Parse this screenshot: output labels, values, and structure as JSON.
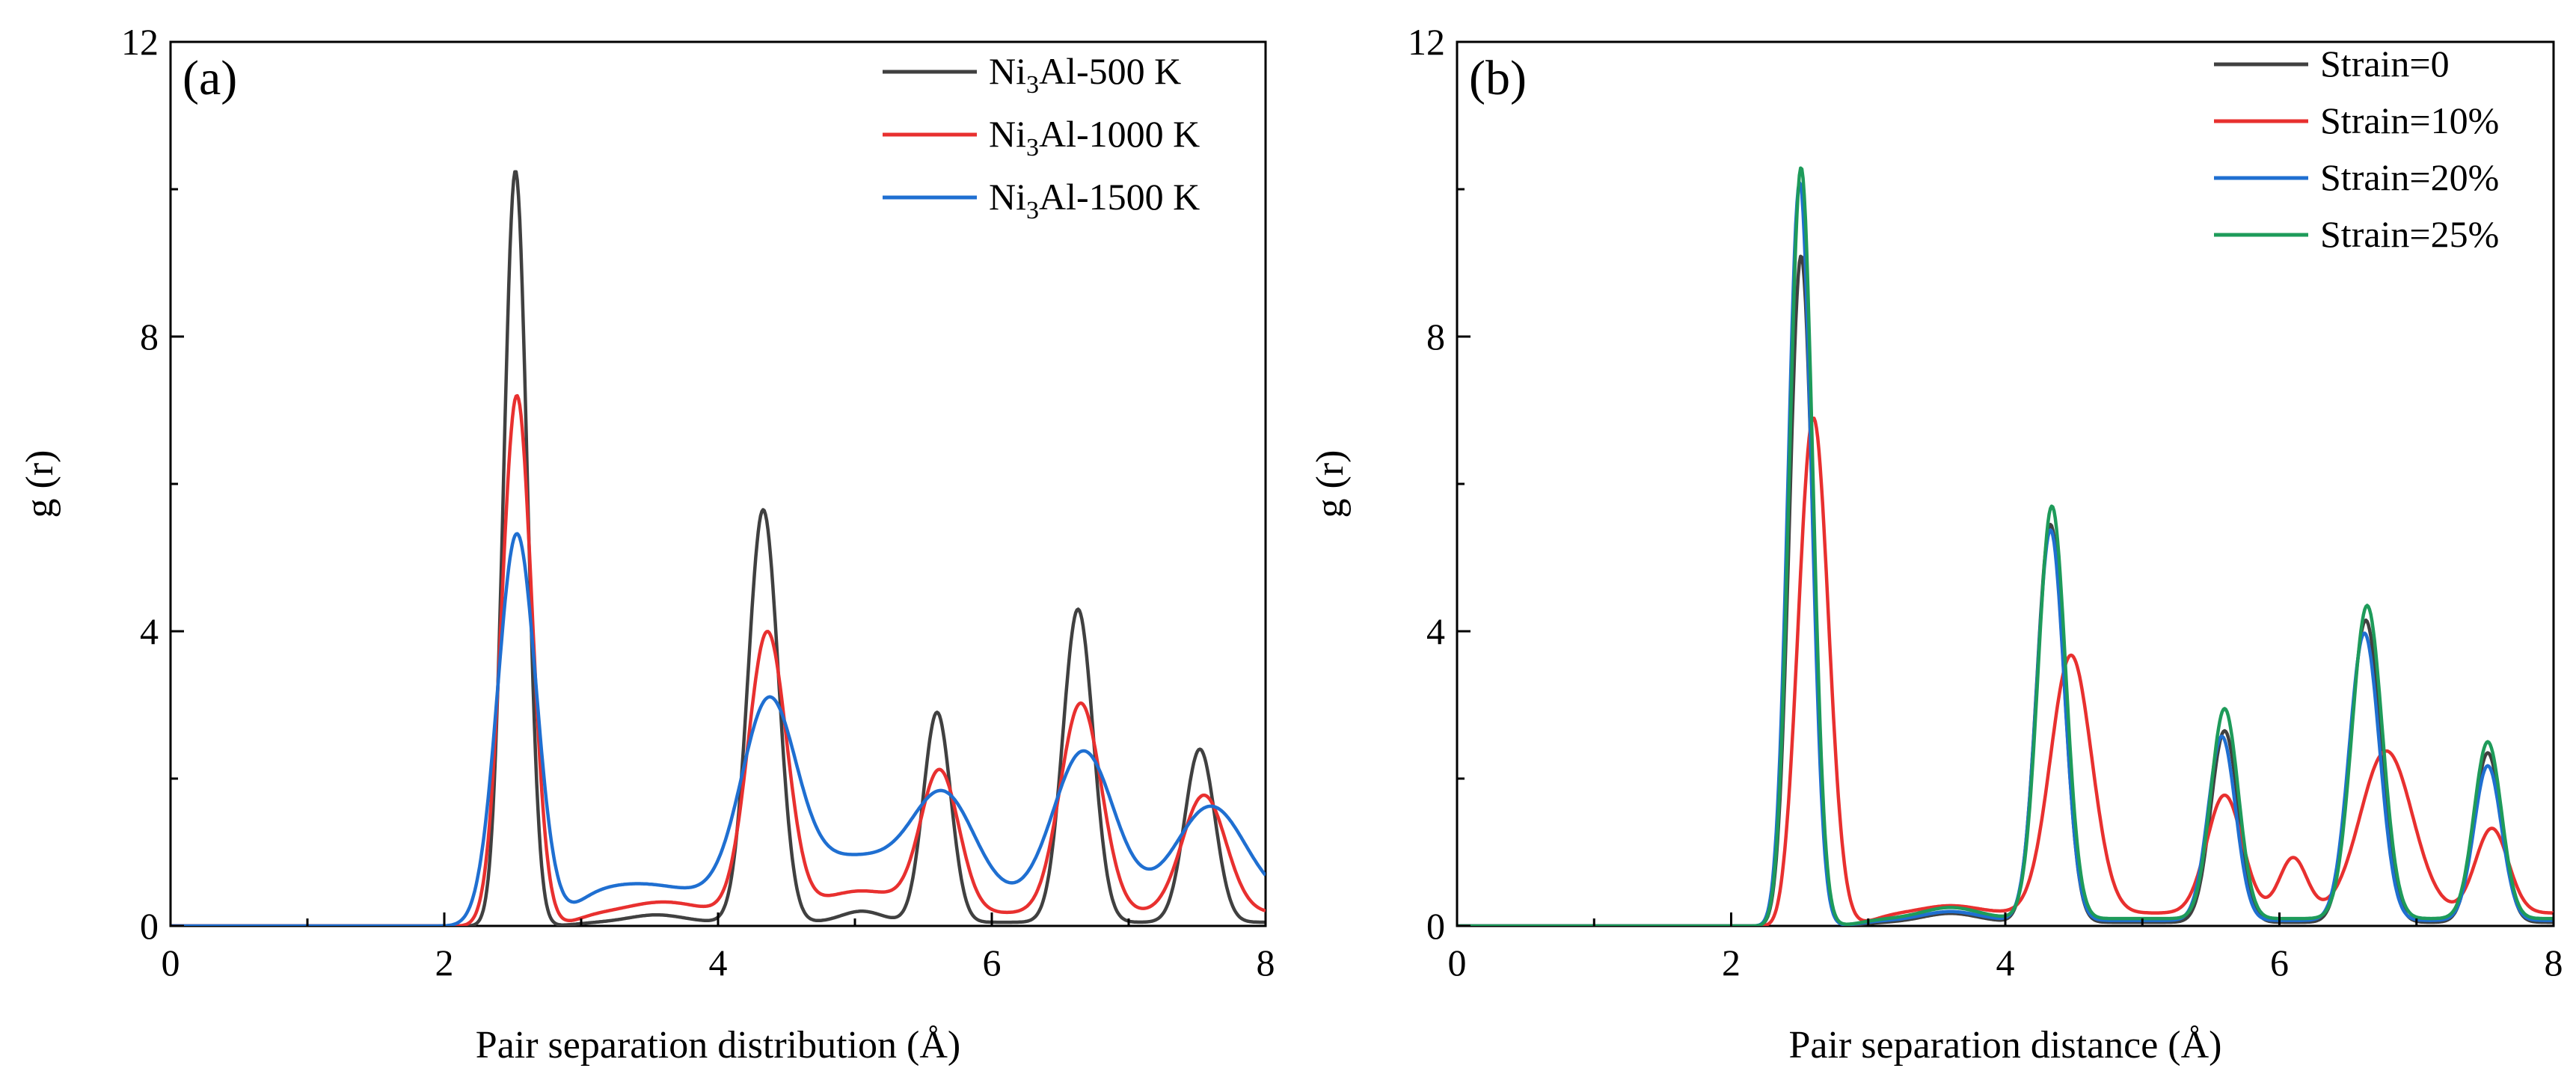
{
  "chart_data": [
    {
      "type": "line",
      "panel_label": "(a)",
      "xlabel": "Pair separation distribution (Å)",
      "ylabel": "g (r)",
      "xlim": [
        0,
        8
      ],
      "ylim": [
        0,
        12
      ],
      "xticks": [
        "0",
        "2",
        "4",
        "6",
        "8"
      ],
      "yticks": [
        "0",
        "4",
        "8",
        "12"
      ],
      "legend_position": "top-right",
      "series": [
        {
          "name": "Ni3Al-500 K",
          "label_parts": [
            "Ni",
            "3",
            "Al-500 K"
          ],
          "color": "#404040",
          "baseline_start": 2.15,
          "peaks": [
            {
              "center": 2.52,
              "height": 10.25,
              "width": 0.085
            },
            {
              "center": 3.55,
              "height": 0.1,
              "width": 0.2
            },
            {
              "center": 4.33,
              "height": 5.6,
              "width": 0.11
            },
            {
              "center": 5.05,
              "height": 0.15,
              "width": 0.15
            },
            {
              "center": 5.6,
              "height": 2.85,
              "width": 0.1
            },
            {
              "center": 6.63,
              "height": 4.25,
              "width": 0.11
            },
            {
              "center": 7.52,
              "height": 2.35,
              "width": 0.11
            }
          ],
          "floor": 0.1
        },
        {
          "name": "Ni3Al-1000 K",
          "label_parts": [
            "Ni",
            "3",
            "Al-1000 K"
          ],
          "color": "#e8302f",
          "baseline_start": 2.1,
          "peaks": [
            {
              "center": 2.53,
              "height": 7.2,
              "width": 0.11
            },
            {
              "center": 3.6,
              "height": 0.15,
              "width": 0.25
            },
            {
              "center": 4.36,
              "height": 3.8,
              "width": 0.14
            },
            {
              "center": 5.05,
              "height": 0.3,
              "width": 0.3
            },
            {
              "center": 5.62,
              "height": 1.9,
              "width": 0.14
            },
            {
              "center": 6.65,
              "height": 2.85,
              "width": 0.15
            },
            {
              "center": 7.55,
              "height": 1.6,
              "width": 0.16
            }
          ],
          "floor": 0.35
        },
        {
          "name": "Ni3Al-1500 K",
          "label_parts": [
            "Ni",
            "3",
            "Al-1500 K"
          ],
          "color": "#1f6fd1",
          "baseline_start": 2.0,
          "peaks": [
            {
              "center": 2.53,
              "height": 5.3,
              "width": 0.14
            },
            {
              "center": 3.4,
              "height": 0.25,
              "width": 0.4
            },
            {
              "center": 4.37,
              "height": 2.65,
              "width": 0.2
            },
            {
              "center": 5.0,
              "height": 0.6,
              "width": 0.35
            },
            {
              "center": 5.65,
              "height": 1.4,
              "width": 0.23
            },
            {
              "center": 6.67,
              "height": 2.05,
              "width": 0.22
            },
            {
              "center": 7.6,
              "height": 1.3,
              "width": 0.25
            }
          ],
          "floor": 0.65
        }
      ]
    },
    {
      "type": "line",
      "panel_label": "(b)",
      "xlabel": "Pair separation distance (Å)",
      "ylabel": "g (r)",
      "xlim": [
        0,
        8
      ],
      "ylim": [
        0,
        12
      ],
      "xticks": [
        "0",
        "2",
        "4",
        "6",
        "8"
      ],
      "yticks": [
        "0",
        "4",
        "8",
        "12"
      ],
      "legend_position": "top-right",
      "series": [
        {
          "name": "Strain=0",
          "label_parts": [
            "Strain=0"
          ],
          "color": "#404040",
          "baseline_start": 2.2,
          "peaks": [
            {
              "center": 2.51,
              "height": 9.1,
              "width": 0.085
            },
            {
              "center": 3.6,
              "height": 0.12,
              "width": 0.2
            },
            {
              "center": 4.33,
              "height": 5.4,
              "width": 0.1
            },
            {
              "center": 5.6,
              "height": 2.6,
              "width": 0.1
            },
            {
              "center": 6.63,
              "height": 4.1,
              "width": 0.11
            },
            {
              "center": 7.52,
              "height": 2.3,
              "width": 0.1
            }
          ],
          "floor": 0.1
        },
        {
          "name": "Strain=10%",
          "label_parts": [
            "Strain=10%"
          ],
          "color": "#e8302f",
          "baseline_start": 2.3,
          "peaks": [
            {
              "center": 2.6,
              "height": 6.9,
              "width": 0.11
            },
            {
              "center": 3.6,
              "height": 0.1,
              "width": 0.2
            },
            {
              "center": 4.48,
              "height": 3.5,
              "width": 0.15
            },
            {
              "center": 5.6,
              "height": 1.6,
              "width": 0.13
            },
            {
              "center": 6.1,
              "height": 0.75,
              "width": 0.1
            },
            {
              "center": 6.78,
              "height": 2.2,
              "width": 0.19
            },
            {
              "center": 7.55,
              "height": 1.15,
              "width": 0.12
            }
          ],
          "floor": 0.35
        },
        {
          "name": "Strain=20%",
          "label_parts": [
            "Strain=20%"
          ],
          "color": "#1f6fd1",
          "baseline_start": 2.2,
          "peaks": [
            {
              "center": 2.5,
              "height": 10.1,
              "width": 0.085
            },
            {
              "center": 3.6,
              "height": 0.12,
              "width": 0.2
            },
            {
              "center": 4.33,
              "height": 5.3,
              "width": 0.1
            },
            {
              "center": 5.58,
              "height": 2.5,
              "width": 0.1
            },
            {
              "center": 6.62,
              "height": 3.9,
              "width": 0.11
            },
            {
              "center": 7.52,
              "height": 2.1,
              "width": 0.1
            }
          ],
          "floor": 0.15
        },
        {
          "name": "Strain=25%",
          "label_parts": [
            "Strain=25%"
          ],
          "color": "#1e9b5a",
          "baseline_start": 2.2,
          "peaks": [
            {
              "center": 2.51,
              "height": 10.3,
              "width": 0.085
            },
            {
              "center": 3.6,
              "height": 0.15,
              "width": 0.2
            },
            {
              "center": 4.34,
              "height": 5.6,
              "width": 0.1
            },
            {
              "center": 5.6,
              "height": 2.85,
              "width": 0.1
            },
            {
              "center": 6.64,
              "height": 4.25,
              "width": 0.11
            },
            {
              "center": 7.52,
              "height": 2.4,
              "width": 0.1
            }
          ],
          "floor": 0.2
        }
      ]
    }
  ]
}
